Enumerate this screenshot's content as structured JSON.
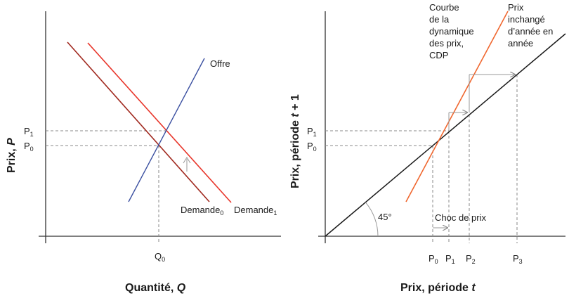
{
  "left": {
    "ylabel_main": "Prix, ",
    "ylabel_var": "P",
    "xlabel_main": "Quantité, ",
    "xlabel_var": "Q",
    "p1": "P",
    "p1_sub": "1",
    "p0": "P",
    "p0_sub": "0",
    "q0": "Q",
    "q0_sub": "0",
    "supply_label": "Offre",
    "demand0": "Demande",
    "demand0_sub": "0",
    "demand1": "Demande",
    "demand1_sub": "1"
  },
  "right": {
    "ylabel_main": "Prix, période ",
    "ylabel_var": "t",
    "ylabel_end": " + 1",
    "xlabel_main": "Prix, période ",
    "xlabel_var": "t",
    "p1": "P",
    "p1_sub": "1",
    "p0": "P",
    "p0_sub": "0",
    "cdp_lines": [
      "Courbe",
      "de la",
      "dynamique",
      "des prix,",
      "CDP"
    ],
    "unchanged_lines": [
      "Prix",
      "inchangé",
      "d’année en",
      "année"
    ],
    "angle": "45°",
    "shock": "Choc de prix",
    "xticks": [
      {
        "t": "P",
        "s": "0"
      },
      {
        "t": "P",
        "s": "1"
      },
      {
        "t": "P",
        "s": "2"
      },
      {
        "t": "P",
        "s": "3"
      }
    ]
  },
  "colors": {
    "demand0": "#a0281e",
    "demand1": "#e8352a",
    "supply": "#3a4fa0",
    "cdp": "#f0672f",
    "line45": "#1a1a1a"
  }
}
